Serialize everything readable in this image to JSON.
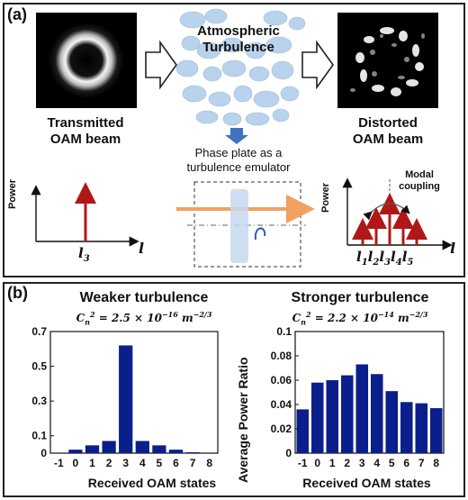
{
  "panel_a": {
    "label": "(a)",
    "transmitted_label_1": "Transmitted",
    "transmitted_label_2": "OAM beam",
    "turbulence_label_1": "Atmospheric",
    "turbulence_label_2": "Turbulence",
    "distorted_label_1": "Distorted",
    "distorted_label_2": "OAM beam",
    "phase_plate_1": "Phase plate as a",
    "phase_plate_2": "turbulence emulator",
    "modal_1": "Modal",
    "modal_2": "coupling",
    "power_label": "Power",
    "l_axis": "l",
    "l3": "l",
    "l3_sub": "3",
    "modes": [
      {
        "l": "l",
        "sub": "1"
      },
      {
        "l": "l",
        "sub": "2"
      },
      {
        "l": "l",
        "sub": "3"
      },
      {
        "l": "l",
        "sub": "4"
      },
      {
        "l": "l",
        "sub": "5"
      }
    ],
    "colors": {
      "arrow": "#b01818",
      "beam": "#f3b07a",
      "turbulence": "#b9d3ec",
      "chevron": "#3f72c4",
      "bar": "#0b1f8c"
    }
  },
  "panel_b": {
    "label": "(b)",
    "left_title": "Weaker turbulence",
    "left_cn": "C",
    "left_cn_sub": "n",
    "left_cn_sup": "2",
    "left_cn_value": " = 2.5 × 10",
    "left_cn_exp": "−16",
    "left_cn_unit": " m",
    "left_cn_unit_exp": "−2/3",
    "right_title": "Stronger turbulence",
    "right_cn": "C",
    "right_cn_sub": "n",
    "right_cn_sup": "2",
    "right_cn_value": " = 2.2 × 10",
    "right_cn_exp": "−14",
    "right_cn_unit": " m",
    "right_cn_unit_exp": "−2/3",
    "ylabel": "Average Power Ratio",
    "xlabel": "Received OAM states"
  },
  "chart_data": [
    {
      "type": "bar",
      "title": "Weaker turbulence",
      "xlabel": "Received OAM states",
      "ylabel": "",
      "categories": [
        "-1",
        "0",
        "1",
        "2",
        "3",
        "4",
        "5",
        "6",
        "7",
        "8"
      ],
      "values": [
        0.0,
        0.02,
        0.045,
        0.07,
        0.62,
        0.07,
        0.045,
        0.02,
        0.005,
        0.0
      ],
      "yticks": [
        "0",
        "0.1",
        "0.3",
        "0.5",
        "0.7"
      ],
      "ytick_values": [
        0,
        0.1,
        0.3,
        0.5,
        0.7
      ],
      "ylim": [
        0,
        0.7
      ]
    },
    {
      "type": "bar",
      "title": "Stronger turbulence",
      "xlabel": "Received OAM states",
      "ylabel": "Average Power Ratio",
      "categories": [
        "-1",
        "0",
        "1",
        "2",
        "3",
        "4",
        "5",
        "6",
        "7",
        "8"
      ],
      "values": [
        0.036,
        0.058,
        0.06,
        0.064,
        0.073,
        0.065,
        0.051,
        0.042,
        0.041,
        0.037
      ],
      "yticks": [
        "0",
        "0.02",
        "0.04",
        "0.06",
        "0.08",
        "0.1"
      ],
      "ytick_values": [
        0,
        0.02,
        0.04,
        0.06,
        0.08,
        0.1
      ],
      "ylim": [
        0,
        0.1
      ]
    }
  ]
}
